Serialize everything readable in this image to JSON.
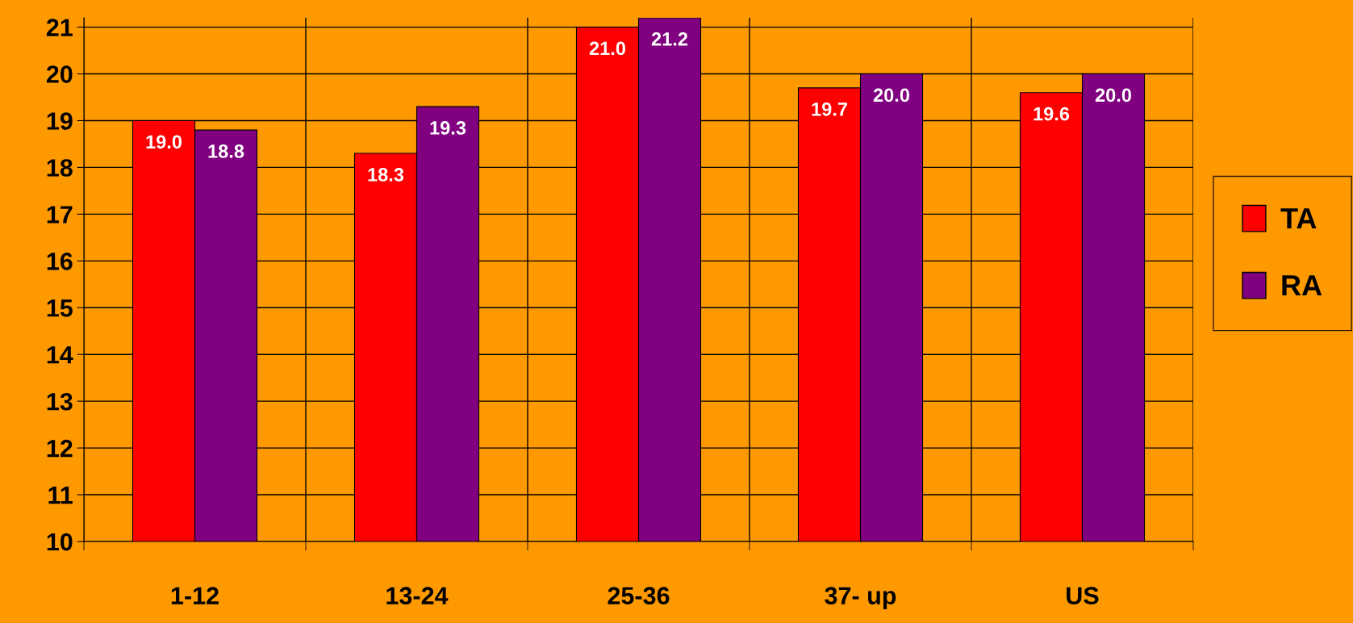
{
  "chart_data": {
    "type": "bar",
    "categories": [
      "1-12",
      "13-24",
      "25-36",
      "37- up",
      "US"
    ],
    "series": [
      {
        "name": "TA",
        "color": "#ff0000",
        "values": [
          19.0,
          18.3,
          21.0,
          19.7,
          19.6
        ],
        "value_labels": [
          "19.0",
          "18.3",
          "21.0",
          "19.7",
          "19.6"
        ]
      },
      {
        "name": "RA",
        "color": "#800080",
        "values": [
          18.8,
          19.3,
          21.2,
          20.0,
          20.0
        ],
        "value_labels": [
          "18.8",
          "19.3",
          "21.2",
          "20.0",
          "20.0"
        ]
      }
    ],
    "ylim": [
      10,
      21.2
    ],
    "yticks": [
      10,
      11,
      12,
      13,
      14,
      15,
      16,
      17,
      18,
      19,
      20,
      21
    ],
    "grid": true,
    "legend": "right"
  }
}
